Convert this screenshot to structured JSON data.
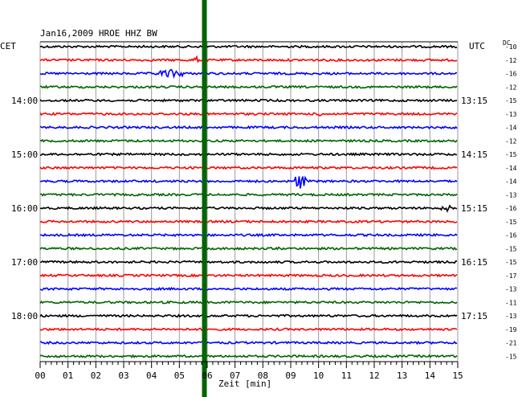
{
  "header": {
    "title": "Jan16,2009   HROE HHZ BW",
    "left_timezone": "CET",
    "right_timezone": "UTC",
    "dc_label": "DC"
  },
  "chart_data": {
    "type": "line",
    "title": "Jan16,2009   HROE HHZ BW",
    "xlabel": "Zeit [min]",
    "ylabel": "",
    "xlim": [
      0,
      15
    ],
    "x_ticks": [
      "00",
      "01",
      "02",
      "03",
      "04",
      "05",
      "06",
      "07",
      "08",
      "09",
      "10",
      "11",
      "12",
      "13",
      "14",
      "15"
    ],
    "trace_colors": [
      "#000000",
      "#ff0000",
      "#0000ff",
      "#006400"
    ],
    "traces": 24,
    "left_time_labels": [
      {
        "trace": 4,
        "text": "14:00"
      },
      {
        "trace": 8,
        "text": "15:00"
      },
      {
        "trace": 12,
        "text": "16:00"
      },
      {
        "trace": 16,
        "text": "17:00"
      },
      {
        "trace": 20,
        "text": "18:00"
      }
    ],
    "right_time_labels": [
      {
        "trace": 4,
        "text": "13:15"
      },
      {
        "trace": 8,
        "text": "14:15"
      },
      {
        "trace": 12,
        "text": "15:15"
      },
      {
        "trace": 16,
        "text": "16:15"
      },
      {
        "trace": 20,
        "text": "17:15"
      }
    ],
    "dc_offsets": [
      "-10",
      "-12",
      "-16",
      "-12",
      "-15",
      "-13",
      "-14",
      "-12",
      "-15",
      "-14",
      "-14",
      "-13",
      "-16",
      "-15",
      "-16",
      "-15",
      "-15",
      "-17",
      "-13",
      "-11",
      "-13",
      "-19",
      "-21",
      "-15"
    ],
    "marker": {
      "x": 5.9,
      "color": "#006400"
    },
    "events": [
      {
        "trace": 1,
        "x": 5.45,
        "width": 0.25,
        "amplitude": 5
      },
      {
        "trace": 2,
        "x": 4.0,
        "width": 1.4,
        "amplitude": 5
      },
      {
        "trace": 5,
        "x": 9.85,
        "width": 0.3,
        "amplitude": 3
      },
      {
        "trace": 10,
        "x": 9.05,
        "width": 0.55,
        "amplitude": 10
      },
      {
        "trace": 12,
        "x": 14.3,
        "width": 0.6,
        "amplitude": 4
      },
      {
        "trace": 15,
        "x": 8.45,
        "width": 0.15,
        "amplitude": 3
      }
    ]
  }
}
